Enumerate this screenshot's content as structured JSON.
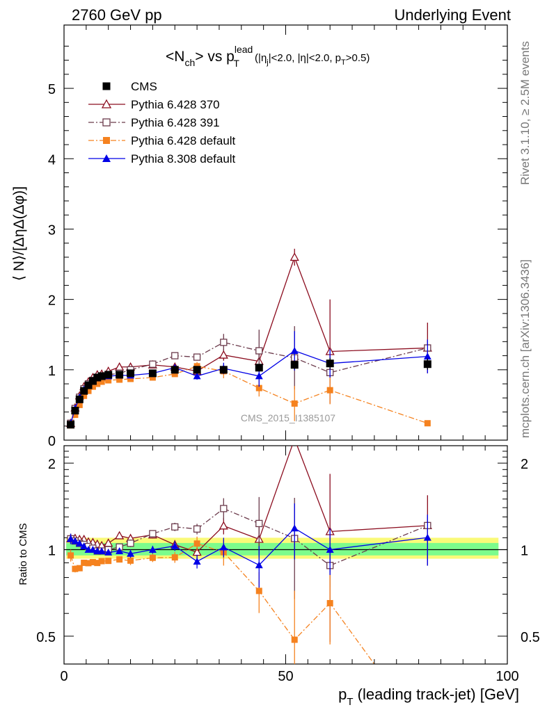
{
  "header": {
    "left": "2760 GeV pp",
    "right": "Underlying Event",
    "side_rivet": "Rivet 3.1.10, ≥ 2.5M events",
    "side_mcplots": "mcplots.cern.ch [arXiv:1306.3436]",
    "watermark": "CMS_2015_I1385107"
  },
  "chart_data": {
    "type": "line",
    "title_parts": {
      "a": "<N",
      "a_sub": "ch",
      "b": "> vs p",
      "b_sup": "lead",
      "b_sub": "T",
      "c": " (|η",
      "c_sub": "j",
      "d": "|<2.0, |η|<2.0, p",
      "d_sub": "T",
      "e": ">0.5)"
    },
    "xlabel_main": "p",
    "xlabel_sub": "T",
    "xlabel_rest": " (leading track-jet) [GeV]",
    "ylabel": "⟨ N⟩/[ΔηΔ(Δφ)]",
    "ratio_ylabel": "Ratio to CMS",
    "xlim": [
      0,
      100
    ],
    "ylim": [
      0,
      5.9
    ],
    "ratio_ylim": [
      0.4,
      2.3
    ],
    "ratio_scale": "log",
    "x_ticks": [
      "0",
      "50",
      "100"
    ],
    "x_tick_values": [
      0,
      50,
      100
    ],
    "y_ticks": [
      "0",
      "1",
      "2",
      "3",
      "4",
      "5"
    ],
    "y_tick_values": [
      0,
      1,
      2,
      3,
      4,
      5
    ],
    "ratio_ticks": [
      "0.5",
      "1",
      "2"
    ],
    "ratio_tick_values": [
      0.5,
      1,
      2
    ],
    "legend_position": "top-left",
    "x": [
      1.5,
      2.5,
      3.5,
      4.5,
      5.5,
      6.5,
      7.5,
      8.5,
      10,
      12.5,
      15,
      20,
      25,
      30,
      36,
      44,
      52,
      60,
      82
    ],
    "series": [
      {
        "name": "CMS",
        "color": "#000000",
        "marker": "square-filled",
        "values": [
          0.22,
          0.42,
          0.58,
          0.7,
          0.78,
          0.84,
          0.89,
          0.91,
          0.93,
          0.93,
          0.95,
          0.95,
          1.0,
          1.0,
          1.0,
          1.03,
          1.07,
          1.09,
          1.08
        ],
        "errors": [
          0.01,
          0.01,
          0.01,
          0.01,
          0.01,
          0.01,
          0.01,
          0.01,
          0.01,
          0.01,
          0.01,
          0.01,
          0.02,
          0.02,
          0.03,
          0.05,
          0.06,
          0.08,
          0.08
        ]
      },
      {
        "name": "Pythia 6.428 370",
        "color": "#8b0c1e",
        "marker": "triangle-open",
        "dash": "solid",
        "values": [
          0.24,
          0.46,
          0.63,
          0.76,
          0.83,
          0.89,
          0.93,
          0.94,
          0.98,
          1.04,
          1.04,
          1.07,
          1.04,
          0.98,
          1.21,
          1.12,
          2.6,
          1.26,
          1.31
        ],
        "errors": [
          0.01,
          0.01,
          0.01,
          0.01,
          0.01,
          0.01,
          0.01,
          0.02,
          0.02,
          0.02,
          0.03,
          0.03,
          0.04,
          0.05,
          0.08,
          0.12,
          0.12,
          0.74,
          0.36
        ]
      },
      {
        "name": "Pythia 6.428 391",
        "color": "#6b3a4b",
        "marker": "square-open",
        "dash": "dashdot",
        "values": [
          0.24,
          0.45,
          0.61,
          0.73,
          0.8,
          0.85,
          0.88,
          0.9,
          0.93,
          0.95,
          1.0,
          1.08,
          1.2,
          1.18,
          1.39,
          1.27,
          1.17,
          0.96,
          1.31
        ],
        "errors": [
          0.01,
          0.01,
          0.01,
          0.01,
          0.01,
          0.01,
          0.01,
          0.02,
          0.02,
          0.02,
          0.03,
          0.03,
          0.04,
          0.05,
          0.12,
          0.3,
          0.45,
          0.15,
          0.1
        ]
      },
      {
        "name": "Pythia 6.428 default",
        "color": "#f5821f",
        "marker": "square-filled",
        "dash": "dashdot",
        "values": [
          0.21,
          0.36,
          0.5,
          0.63,
          0.7,
          0.76,
          0.8,
          0.83,
          0.85,
          0.86,
          0.87,
          0.89,
          0.94,
          1.05,
          0.98,
          0.74,
          0.52,
          0.71,
          0.24
        ],
        "errors": [
          0.01,
          0.01,
          0.01,
          0.01,
          0.01,
          0.01,
          0.01,
          0.02,
          0.02,
          0.02,
          0.03,
          0.03,
          0.04,
          0.06,
          0.1,
          0.12,
          0.25,
          0.2,
          0.02
        ]
      },
      {
        "name": "Pythia 8.308 default",
        "color": "#0000e6",
        "marker": "triangle-filled",
        "dash": "solid",
        "values": [
          0.24,
          0.45,
          0.61,
          0.72,
          0.78,
          0.84,
          0.88,
          0.9,
          0.91,
          0.92,
          0.92,
          0.95,
          1.03,
          0.91,
          1.02,
          0.91,
          1.27,
          1.09,
          1.19
        ],
        "errors": [
          0.01,
          0.01,
          0.01,
          0.01,
          0.01,
          0.01,
          0.01,
          0.02,
          0.02,
          0.02,
          0.03,
          0.03,
          0.04,
          0.05,
          0.08,
          0.15,
          0.28,
          0.2,
          0.24
        ]
      }
    ],
    "ratio_band_colors": {
      "inner": "#7cfc8c",
      "outer": "#fafa78"
    }
  }
}
